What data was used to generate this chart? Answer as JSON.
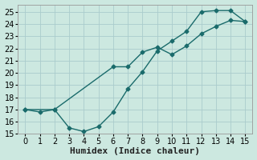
{
  "xlabel": "Humidex (Indice chaleur)",
  "bg_color": "#cce8e0",
  "grid_color": "#aacccc",
  "line_color": "#1a6b6b",
  "xlim": [
    -0.5,
    15.5
  ],
  "ylim": [
    15,
    25.6
  ],
  "xticks": [
    0,
    1,
    2,
    3,
    4,
    5,
    6,
    7,
    8,
    9,
    10,
    11,
    12,
    13,
    14,
    15
  ],
  "yticks": [
    15,
    16,
    17,
    18,
    19,
    20,
    21,
    22,
    23,
    24,
    25
  ],
  "curve1_x": [
    0,
    1,
    2,
    3,
    4,
    5,
    6,
    7,
    8,
    9,
    10,
    11,
    12,
    13,
    14,
    15
  ],
  "curve1_y": [
    17.0,
    16.8,
    17.0,
    15.5,
    15.2,
    15.6,
    16.8,
    18.7,
    20.1,
    21.8,
    22.6,
    23.4,
    25.0,
    25.1,
    25.1,
    24.2
  ],
  "curve2_x": [
    0,
    2,
    6,
    7,
    8,
    9,
    10,
    11,
    12,
    13,
    14,
    15
  ],
  "curve2_y": [
    17.0,
    17.0,
    20.5,
    20.5,
    21.7,
    22.1,
    21.5,
    22.2,
    23.2,
    23.8,
    24.3,
    24.2
  ],
  "marker_size": 2.5,
  "line_width": 1.0,
  "xlabel_fontsize": 8,
  "tick_fontsize": 7
}
